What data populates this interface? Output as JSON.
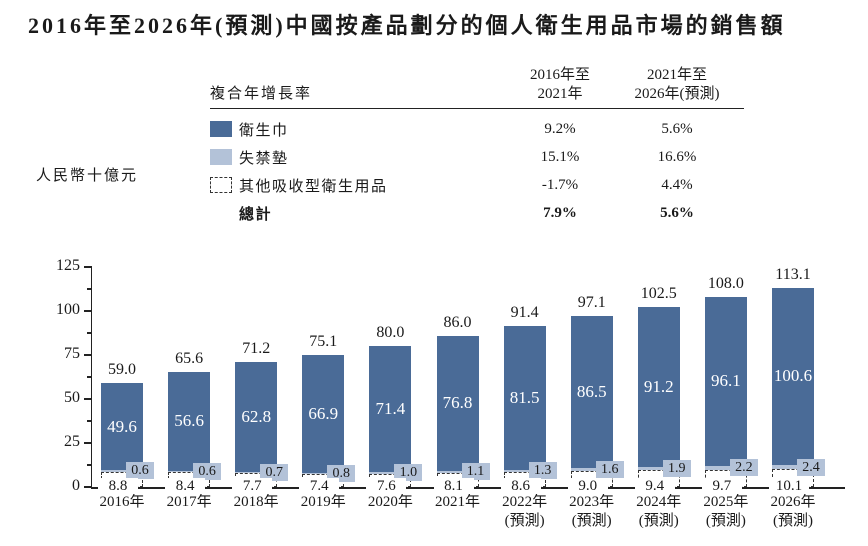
{
  "title": "2016年至2026年(預測)中國按產品劃分的個人衛生用品市場的銷售額",
  "y_axis_label": "人民幣十億元",
  "cagr_table": {
    "corner_label": "複合年增長率",
    "col_headers": [
      "2016年至\n2021年",
      "2021年至\n2026年(預測)"
    ],
    "rows": [
      {
        "label": "衛生巾",
        "swatch": "sanitary-napkin",
        "values": [
          "9.2%",
          "5.6%"
        ]
      },
      {
        "label": "失禁墊",
        "swatch": "incontinence-pad",
        "values": [
          "15.1%",
          "16.6%"
        ]
      },
      {
        "label": "其他吸收型衛生用品",
        "swatch": "other-absorbent",
        "values": [
          "-1.7%",
          "4.4%"
        ]
      },
      {
        "label": "總計",
        "swatch": "none",
        "values": [
          "7.9%",
          "5.6%"
        ]
      }
    ]
  },
  "chart_data": {
    "type": "bar",
    "stacked": true,
    "title": "2016年至2026年(預測)中國按產品劃分的個人衛生用品市場的銷售額",
    "ylabel": "人民幣十億元",
    "ylim": [
      0,
      125
    ],
    "yticks": [
      "0",
      "25",
      "50",
      "75",
      "100",
      "125"
    ],
    "grid": false,
    "legend_position": "top-table",
    "categories": [
      [
        "2016年"
      ],
      [
        "2017年"
      ],
      [
        "2018年"
      ],
      [
        "2019年"
      ],
      [
        "2020年"
      ],
      [
        "2021年"
      ],
      [
        "2022年",
        "(預測)"
      ],
      [
        "2023年",
        "(預測)"
      ],
      [
        "2024年",
        "(預測)"
      ],
      [
        "2025年",
        "(預測)"
      ],
      [
        "2026年",
        "(預測)"
      ]
    ],
    "series": [
      {
        "name": "其他吸收型衛生用品",
        "style": "dashed",
        "values": [
          "8.8",
          "8.4",
          "7.7",
          "7.4",
          "7.6",
          "8.1",
          "8.6",
          "9.0",
          "9.4",
          "9.7",
          "10.1"
        ]
      },
      {
        "name": "失禁墊",
        "style": "incontinence-pad",
        "values": [
          "0.6",
          "0.6",
          "0.7",
          "0.8",
          "1.0",
          "1.1",
          "1.3",
          "1.6",
          "1.9",
          "2.2",
          "2.4"
        ]
      },
      {
        "name": "衛生巾",
        "style": "sanitary-napkin",
        "values": [
          "49.6",
          "56.6",
          "62.8",
          "66.9",
          "71.4",
          "76.8",
          "81.5",
          "86.5",
          "91.2",
          "96.1",
          "100.6"
        ]
      }
    ],
    "totals": [
      "59.0",
      "65.6",
      "71.2",
      "75.1",
      "80.0",
      "86.0",
      "91.4",
      "97.1",
      "102.5",
      "108.0",
      "113.1"
    ]
  },
  "colors": {
    "sanitary_napkin": "#4a6b97",
    "incontinence_pad": "#b3c2d8",
    "other_fill": "#ffffff",
    "axis": "#222222",
    "text": "#1a1a1a"
  }
}
